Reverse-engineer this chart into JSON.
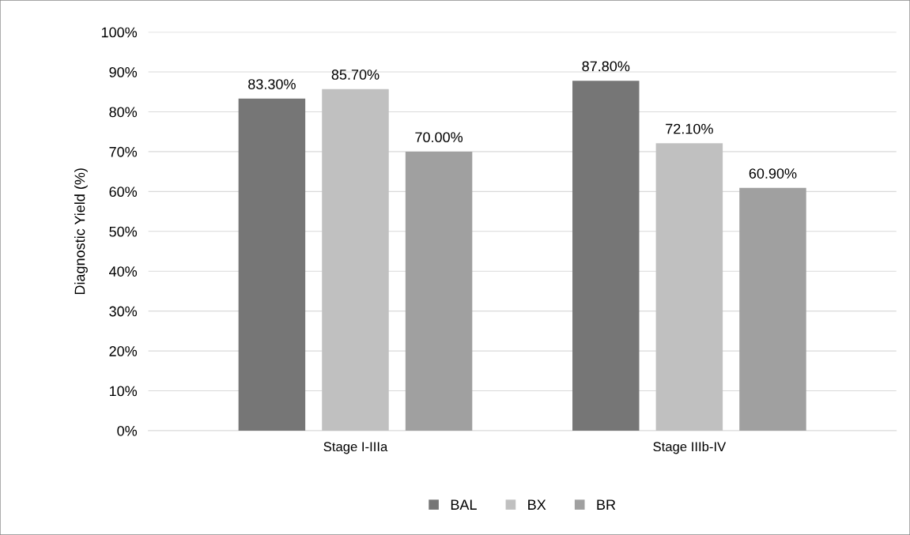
{
  "chart_data": {
    "type": "bar",
    "ylabel": "Diagnostic Yield (%)",
    "categories": [
      "Stage I-IIIa",
      "Stage IIIb-IV"
    ],
    "series": [
      {
        "name": "BAL",
        "color": "#767676",
        "values": [
          83.3,
          87.8
        ],
        "value_labels": [
          "83.30%",
          "87.80%"
        ]
      },
      {
        "name": "BX",
        "color": "#c0c0c0",
        "values": [
          85.7,
          72.1
        ],
        "value_labels": [
          "85.70%",
          "72.10%"
        ]
      },
      {
        "name": "BR",
        "color": "#a0a0a0",
        "values": [
          70.0,
          60.9
        ],
        "value_labels": [
          "70.00%",
          "60.90%"
        ]
      }
    ],
    "ylim": [
      0,
      100
    ],
    "yticks": [
      {
        "value": 0,
        "label": "0%"
      },
      {
        "value": 10,
        "label": "10%"
      },
      {
        "value": 20,
        "label": "20%"
      },
      {
        "value": 30,
        "label": "30%"
      },
      {
        "value": 40,
        "label": "40%"
      },
      {
        "value": 50,
        "label": "50%"
      },
      {
        "value": 60,
        "label": "60%"
      },
      {
        "value": 70,
        "label": "70%"
      },
      {
        "value": 80,
        "label": "80%"
      },
      {
        "value": 90,
        "label": "90%"
      },
      {
        "value": 100,
        "label": "100%"
      }
    ],
    "grid": "y",
    "legend": "bottom"
  }
}
